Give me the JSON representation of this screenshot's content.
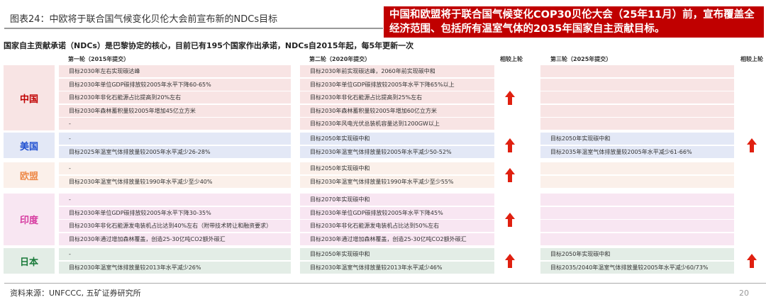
{
  "header": {
    "title": "图表24：中欧将于联合国气候变化贝伦大会前宣布新的NDCs目标",
    "callout": "中国和欧盟将于联合国气候变化COP30贝伦大会（25年11月）前，宣布覆盖全经济范围、包括所有温室气体的2035年国家自主贡献目标。",
    "subtitle": "国家自主贡献承诺（NDCs）是巴黎协定的核心，目前已有195个国家作出承诺，NDCs自2015年起，每5年更新一次"
  },
  "columns": {
    "round1": "第一轮（2015年提交）",
    "round2": "第二轮（2020年提交）",
    "compare1": "相较上轮",
    "round3": "第三轮（2025年提交）",
    "compare2": "相较上轮"
  },
  "arrow_color": "#e02010",
  "groups": [
    {
      "name": "中国",
      "color": "#c00000",
      "bg": "#f8e4e4",
      "round1": [
        "目标2030年左右实现碳达峰",
        "目标2030年单位GDP碳排放较2005年水平下降60-65%",
        "目标2030年非化石能源占比提高到20%左右",
        "目标2030年森林蓄积量较2005年增加45亿立方米",
        "-"
      ],
      "round2": [
        "目标2030年前实现碳达峰，2060年前实现碳中和",
        "目标2030年单位GDP碳排放较2005年水平下降65%以上",
        "目标2030年非化石能源占比提高到25%左右",
        "目标2030年森林蓄积量较2005年增加60亿立方米",
        "目标2030年风电光伏总装机容量达到1200GW以上"
      ],
      "round3": [
        "",
        "",
        "",
        "",
        ""
      ],
      "up2": true,
      "up3": false
    },
    {
      "name": "美国",
      "color": "#1f4fd0",
      "bg": "#e3e8f6",
      "round1": [
        "-",
        "目标2025年温室气体排放量较2005年水平减少26-28%"
      ],
      "round2": [
        "目标2050年实现碳中和",
        "目标2030年温室气体排放量较2005年水平减少50-52%"
      ],
      "round3": [
        "目标2050年实现碳中和",
        "目标2035年温室气体排放量较2005年水平减少61-66%"
      ],
      "up2": true,
      "up3": true
    },
    {
      "name": "欧盟",
      "color": "#ee8a4a",
      "bg": "#fbf0ea",
      "round1": [
        "-",
        "目标2030年温室气体排放量较1990年水平减少至少40%"
      ],
      "round2": [
        "目标2050年实现碳中和",
        "目标2030年温室气体排放量较1990年水平减少至少55%"
      ],
      "round3": [
        "",
        ""
      ],
      "up2": true,
      "up3": false
    },
    {
      "name": "印度",
      "color": "#d63aa0",
      "bg": "#f8e6f2",
      "round1": [
        "-",
        "目标2030年单位GDP碳排放较2005年水平下降30-35%",
        "目标2030年非化石能源发电装机占比达到40%左右（附带技术转让和融资要求）",
        "目标2030年通过增加森林覆盖，创造25-30亿吨CO2额外碳汇"
      ],
      "round2": [
        "目标2070年实现碳中和",
        "目标2030年单位GDP碳排放较2005年水平下降45%",
        "目标2030年非化石能源发电装机占比达到50%左右",
        "目标2030年通过增加森林覆盖，创造25-30亿吨CO2额外碳汇"
      ],
      "round3": [
        "",
        "",
        "",
        ""
      ],
      "up2": true,
      "up3": false
    },
    {
      "name": "日本",
      "color": "#1a7a3a",
      "bg": "#e3ede6",
      "round1": [
        "-",
        "目标2030年温室气体排放量较2013年水平减少26%"
      ],
      "round2": [
        "目标2050年实现碳中和",
        "目标2030年温室气体排放量较2013年水平减少46%"
      ],
      "round3": [
        "目标2050年实现碳中和",
        "目标2035/2040年温室气体排放量较2005年水平减少60/73%"
      ],
      "up2": true,
      "up3": true
    }
  ],
  "footer": {
    "source": "资料来源：UNFCCC, 五矿证券研究所",
    "page": "20"
  }
}
